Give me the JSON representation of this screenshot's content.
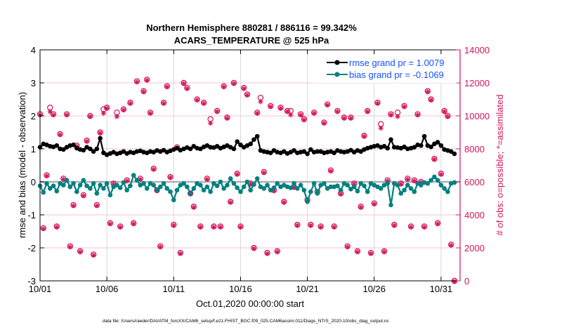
{
  "chart_data": {
    "type": "line",
    "title": "Northern Hemisphere 880281 / 886116 = 99.342%",
    "subtitle": "ACARS_TEMPERATURE @ 525 hPa",
    "xlabel": "Oct.01,2020 00:00:00 start",
    "ylabel": "rmse and bias (model - observation)",
    "y2label": "# of obs: o=possible; *=assimilated",
    "footnote": "data file: /Users/raeder/DAI/ATM_forcXX/CAM6_setup/f.e21.FHIST_BGC.f09_025.CAM6assim.011/Diags_NTrS_2020-10/obs_diag_output.nc",
    "ylim": [
      -3,
      4
    ],
    "y2lim": [
      0,
      14000
    ],
    "yticks": [
      "-3",
      "-2",
      "-1",
      "0",
      "1",
      "2",
      "3",
      "4"
    ],
    "y2ticks": [
      "0",
      "2000",
      "4000",
      "6000",
      "8000",
      "10000",
      "12000",
      "14000"
    ],
    "xlim": [
      "10/01 00:00",
      "11/01 08:00"
    ],
    "xticks": [
      "10/01",
      "10/06",
      "10/11",
      "10/16",
      "10/21",
      "10/26",
      "10/31"
    ],
    "grid": true,
    "legend_placement": "top-right",
    "time_step": "6 hours",
    "colors": {
      "rmse": "#000000",
      "bias": "#008080",
      "obs": "#d4145a",
      "legend_text": "#1450ff",
      "zero_line": "#b0b0b0"
    },
    "series": [
      {
        "name": "rmse grand pr = 1.0079",
        "axis": "left",
        "values": [
          1.05,
          1.15,
          1.12,
          1.08,
          1.06,
          1.1,
          1.0,
          0.98,
          1.05,
          1.1,
          1.12,
          1.02,
          0.98,
          0.96,
          1.05,
          1.0,
          0.92,
          1.0,
          1.32,
          0.88,
          0.82,
          0.86,
          0.9,
          0.85,
          0.88,
          0.92,
          0.86,
          0.9,
          0.88,
          0.92,
          0.94,
          0.9,
          0.88,
          0.92,
          0.9,
          0.95,
          0.92,
          0.96,
          0.9,
          0.94,
          0.98,
          1.02,
          0.96,
          1.0,
          1.04,
          1.0,
          1.08,
          1.02,
          1.0,
          1.06,
          1.1,
          1.05,
          1.04,
          1.08,
          1.02,
          1.06,
          1.1,
          1.05,
          1.0,
          1.22,
          1.12,
          1.05,
          1.1,
          1.15,
          1.28,
          1.38,
          0.95,
          0.92,
          0.9,
          0.88,
          0.95,
          0.9,
          0.88,
          0.92,
          0.86,
          0.9,
          0.95,
          0.88,
          0.9,
          0.92,
          0.85,
          0.98,
          0.9,
          0.92,
          0.92,
          0.88,
          0.9,
          0.92,
          0.88,
          0.95,
          0.92,
          0.9,
          0.92,
          0.96,
          0.9,
          0.95,
          0.92,
          0.98,
          1.02,
          1.05,
          1.08,
          1.1,
          1.05,
          1.08,
          1.02,
          1.28,
          1.05,
          1.04,
          1.02,
          1.06,
          1.0,
          1.02,
          1.05,
          1.12,
          1.1,
          1.38,
          1.1,
          1.06,
          1.15,
          1.2,
          1.1,
          0.98,
          0.95,
          0.92,
          0.85
        ]
      },
      {
        "name": "bias grand pr = -0.1069",
        "axis": "left",
        "values": [
          -0.12,
          -0.32,
          -0.05,
          -0.2,
          -0.12,
          -0.28,
          -0.05,
          -0.1,
          0.05,
          -0.15,
          -0.05,
          -0.3,
          -0.1,
          0.05,
          -0.12,
          -0.2,
          -0.05,
          -0.35,
          -0.1,
          -0.2,
          -0.05,
          -0.4,
          -0.15,
          -0.1,
          -0.18,
          -0.02,
          -0.25,
          -0.12,
          0.2,
          0.05,
          -0.1,
          -0.05,
          -0.2,
          -0.05,
          -0.1,
          -0.25,
          -0.15,
          -0.05,
          -0.2,
          -0.3,
          -0.55,
          -0.25,
          -0.1,
          -0.05,
          -0.15,
          -0.35,
          -0.2,
          -0.05,
          -0.1,
          -0.25,
          -0.15,
          -0.3,
          -0.05,
          -0.12,
          0.0,
          -0.2,
          -0.1,
          0.1,
          -0.05,
          -0.18,
          -0.3,
          -0.15,
          0.0,
          -0.25,
          -0.08,
          0.1,
          -0.15,
          -0.2,
          -0.1,
          -0.25,
          -0.18,
          -0.05,
          -0.15,
          -0.1,
          -0.15,
          -0.18,
          -0.05,
          -0.2,
          -0.1,
          -0.25,
          -0.6,
          -0.3,
          -0.05,
          -0.35,
          -0.1,
          -0.05,
          -0.2,
          -0.15,
          -0.15,
          -0.12,
          -0.25,
          -0.05,
          -0.1,
          -0.22,
          -0.15,
          -0.28,
          -0.05,
          -0.12,
          -0.3,
          -0.05,
          -0.1,
          -0.15,
          -0.2,
          -0.1,
          -0.05,
          -0.7,
          -0.05,
          -0.1,
          -0.35,
          -0.25,
          -0.1,
          -0.2,
          -0.3,
          -0.05,
          -0.1,
          -0.02,
          -0.05,
          0.05,
          0.15,
          0.05,
          -0.1,
          -0.2,
          -0.3,
          -0.05,
          -0.02
        ]
      },
      {
        "name": "o=possible",
        "axis": "right",
        "values": [
          10100,
          3200,
          6400,
          10500,
          10100,
          3300,
          8900,
          6200,
          10100,
          2100,
          4600,
          8200,
          1800,
          5200,
          8500,
          10000,
          1600,
          4600,
          9000,
          10400,
          10500,
          3500,
          5900,
          10200,
          3300,
          10400,
          6100,
          10800,
          3500,
          12100,
          6200,
          11500,
          12200,
          10200,
          6800,
          5500,
          2100,
          10800,
          11800,
          6300,
          3400,
          8100,
          1700,
          12000,
          11700,
          5300,
          4500,
          11000,
          3300,
          10800,
          6200,
          9800,
          3300,
          10300,
          3300,
          11800,
          9900,
          4800,
          12000,
          6500,
          3300,
          11700,
          11300,
          5900,
          2000,
          10200,
          11100,
          6600,
          1700,
          10600,
          5500,
          1800,
          10500,
          4800,
          10300,
          10300,
          5700,
          3400,
          10100,
          9800,
          4900,
          3400,
          10200,
          5400,
          3300,
          9600,
          10700,
          6700,
          3300,
          10300,
          5300,
          9900,
          2100,
          9900,
          5900,
          1800,
          4500,
          8800,
          10300,
          1700,
          4700,
          10800,
          9500,
          1800,
          6100,
          10100,
          3400,
          10200,
          5900,
          10600,
          6200,
          3300,
          6100,
          10100,
          6000,
          3300,
          11500,
          11000,
          7400,
          3500,
          6500,
          10300,
          10000,
          2200,
          0
        ]
      },
      {
        "name": "*=assimilated",
        "axis": "right",
        "values": [
          10100,
          3200,
          6400,
          10300,
          10100,
          3300,
          8900,
          6200,
          10100,
          2100,
          4600,
          8200,
          1800,
          5200,
          8500,
          10000,
          1600,
          4600,
          9000,
          10200,
          10500,
          3500,
          5900,
          10000,
          3300,
          10400,
          6100,
          10800,
          3500,
          12100,
          6200,
          11500,
          12200,
          10200,
          6800,
          5500,
          2100,
          10800,
          11800,
          6300,
          3400,
          8100,
          1700,
          12000,
          11700,
          5300,
          4500,
          11000,
          3300,
          10800,
          6200,
          9600,
          3300,
          10300,
          3300,
          11800,
          9900,
          4800,
          12000,
          6500,
          3300,
          11700,
          11300,
          5900,
          2000,
          10200,
          10900,
          6600,
          1700,
          10600,
          5500,
          1800,
          10500,
          4800,
          10300,
          10100,
          5700,
          3400,
          10100,
          9800,
          4900,
          3400,
          10200,
          5400,
          3300,
          9600,
          10700,
          6700,
          3300,
          10300,
          5300,
          9900,
          2100,
          9900,
          5900,
          1800,
          4500,
          8800,
          10300,
          1700,
          4700,
          10800,
          9300,
          1800,
          6100,
          10100,
          3400,
          10000,
          5900,
          10600,
          6200,
          3300,
          6100,
          10100,
          6000,
          3300,
          11500,
          11000,
          7400,
          3500,
          6500,
          10300,
          10000,
          2200,
          0
        ]
      }
    ]
  }
}
